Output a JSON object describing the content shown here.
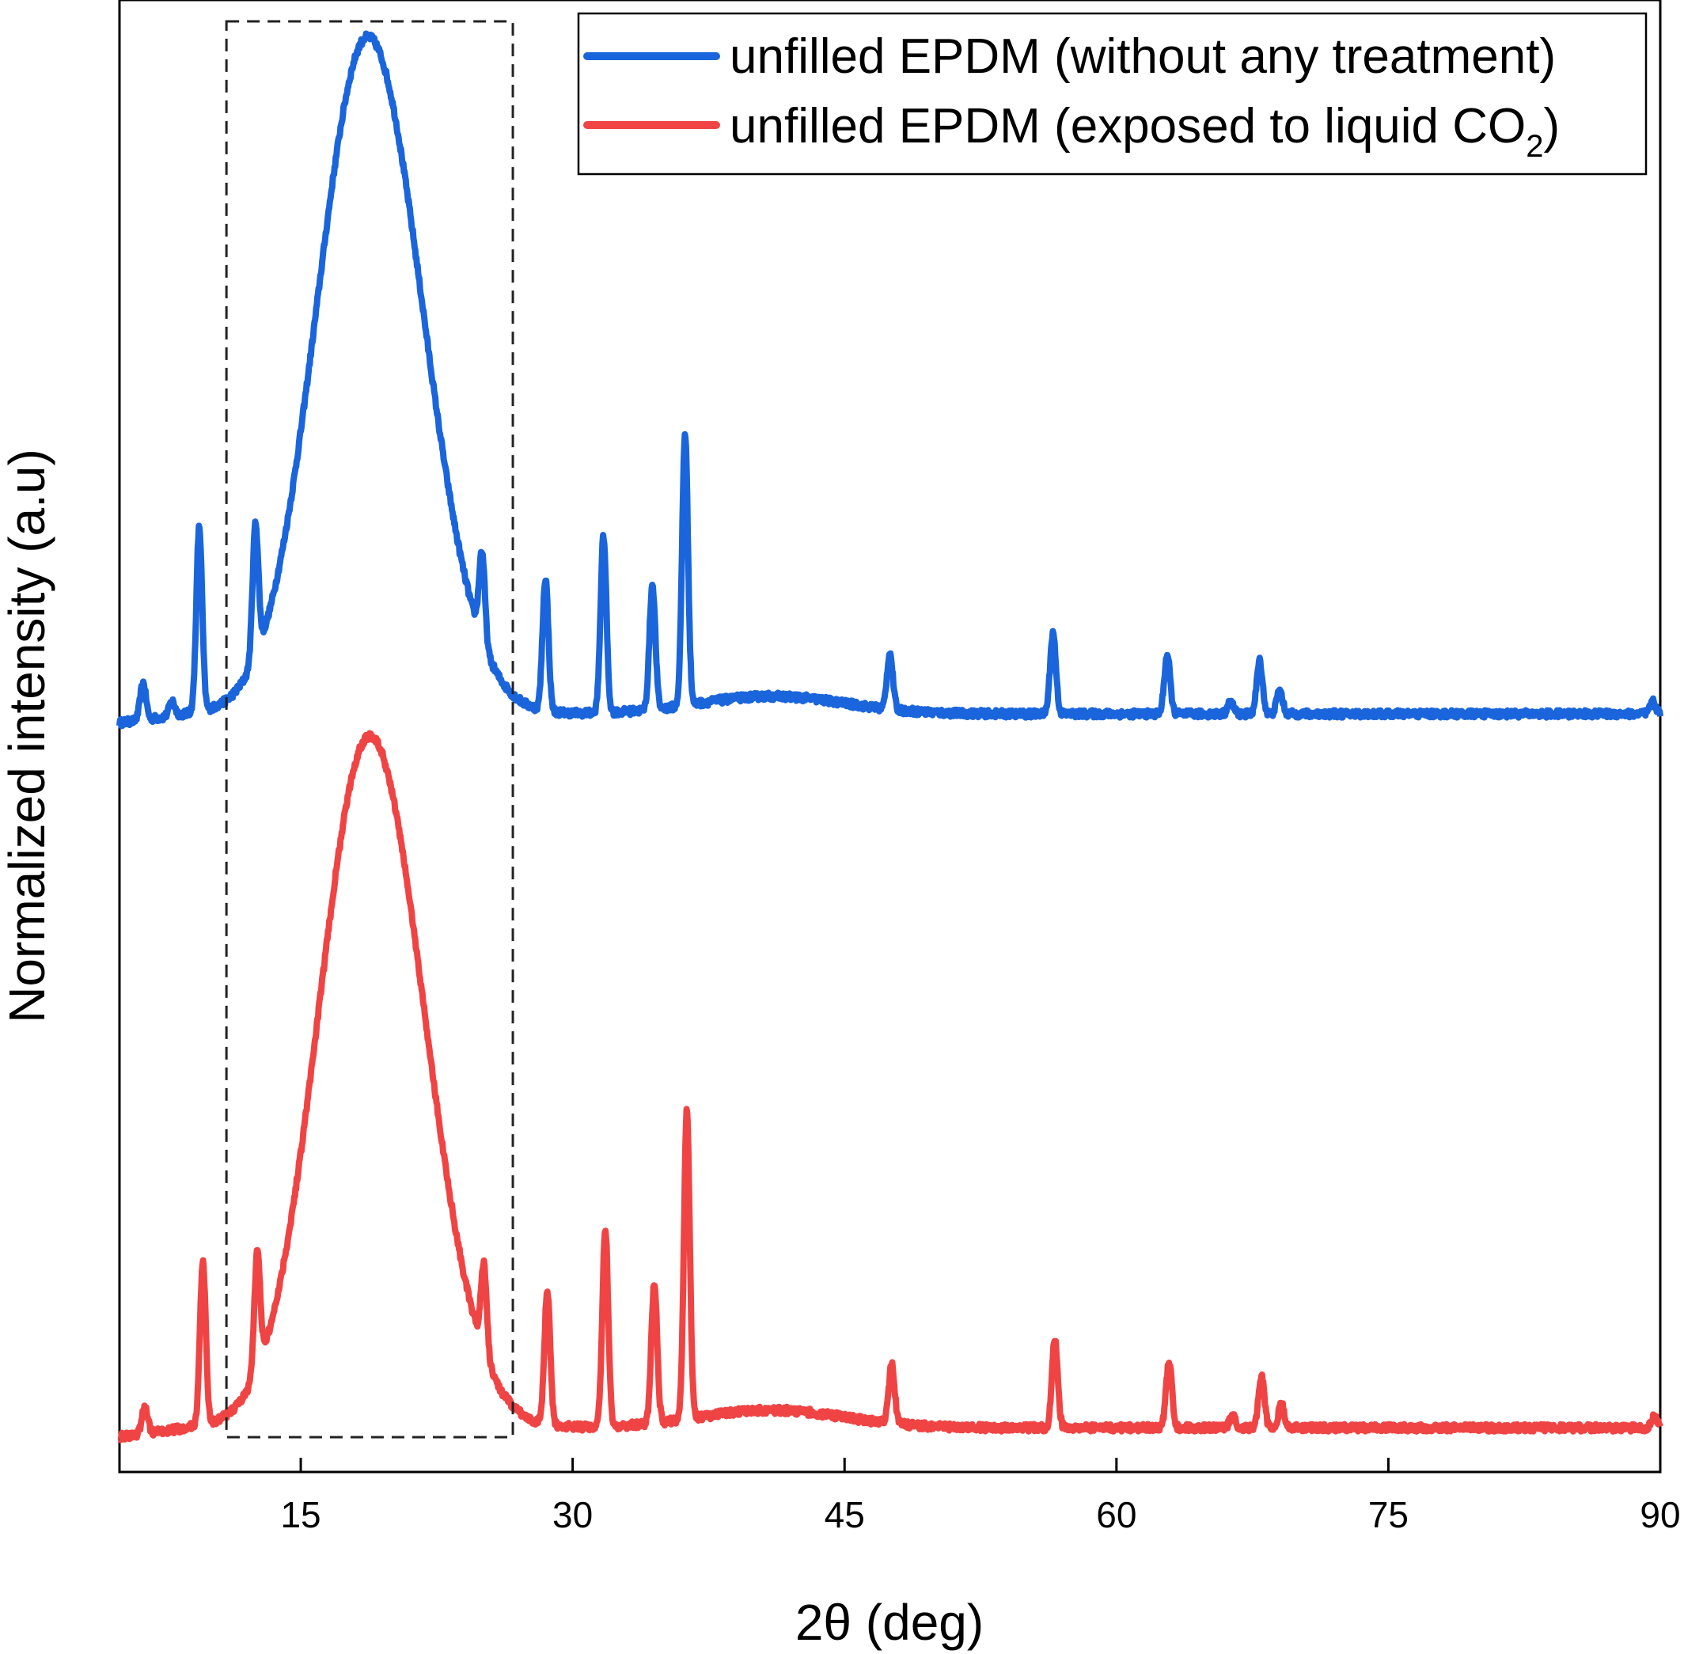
{
  "chart_data": {
    "type": "line",
    "xlabel": "2θ (deg)",
    "ylabel": "Normalized intensity (a.u)",
    "xlim": [
      5,
      90
    ],
    "xticks": [
      15,
      30,
      45,
      60,
      75,
      90
    ],
    "ylim": [
      0,
      1
    ],
    "y_ticks_shown": false,
    "grid": false,
    "legend_position": "top-right",
    "annotation": {
      "type": "dashed-box",
      "x_range": [
        10.9,
        26.7
      ]
    },
    "series": [
      {
        "name": "unfilled EPDM (without any treatment)",
        "legend_main": "unfilled EPDM (without any treatment)",
        "color": "#1a65dc",
        "baseline": 0.515,
        "amorphous_peak": {
          "center": 18.7,
          "height": 0.46,
          "width_left": 2.8,
          "width_right": 3.0
        },
        "broad_bumps": [
          {
            "center": 41,
            "height": 0.012,
            "width": 4
          }
        ],
        "sharp_peaks": [
          {
            "x": 6.3,
            "h": 0.025
          },
          {
            "x": 7.9,
            "h": 0.01
          },
          {
            "x": 9.4,
            "h": 0.125
          },
          {
            "x": 12.5,
            "h": 0.09
          },
          {
            "x": 25.0,
            "h": 0.06
          },
          {
            "x": 28.5,
            "h": 0.09
          },
          {
            "x": 31.7,
            "h": 0.12
          },
          {
            "x": 34.4,
            "h": 0.085
          },
          {
            "x": 36.2,
            "h": 0.185
          },
          {
            "x": 47.5,
            "h": 0.038
          },
          {
            "x": 56.5,
            "h": 0.055
          },
          {
            "x": 62.8,
            "h": 0.04
          },
          {
            "x": 66.3,
            "h": 0.008
          },
          {
            "x": 67.9,
            "h": 0.036
          },
          {
            "x": 69.0,
            "h": 0.016
          },
          {
            "x": 89.6,
            "h": 0.008
          }
        ]
      },
      {
        "name": "unfilled EPDM (exposed to liquid CO2)",
        "legend_main": "unfilled EPDM (exposed to liquid CO",
        "legend_sub": "2",
        "legend_end": ")",
        "color": "#f04444",
        "baseline": 0.03,
        "amorphous_peak": {
          "center": 18.8,
          "height": 0.47,
          "width_left": 2.8,
          "width_right": 3.0
        },
        "broad_bumps": [
          {
            "center": 41,
            "height": 0.012,
            "width": 4
          }
        ],
        "sharp_peaks": [
          {
            "x": 6.4,
            "h": 0.018
          },
          {
            "x": 9.6,
            "h": 0.11
          },
          {
            "x": 12.6,
            "h": 0.08
          },
          {
            "x": 25.1,
            "h": 0.06
          },
          {
            "x": 28.6,
            "h": 0.09
          },
          {
            "x": 31.8,
            "h": 0.135
          },
          {
            "x": 34.5,
            "h": 0.095
          },
          {
            "x": 36.3,
            "h": 0.21
          },
          {
            "x": 47.6,
            "h": 0.04
          },
          {
            "x": 56.6,
            "h": 0.06
          },
          {
            "x": 62.9,
            "h": 0.045
          },
          {
            "x": 66.4,
            "h": 0.008
          },
          {
            "x": 68.0,
            "h": 0.035
          },
          {
            "x": 69.1,
            "h": 0.016
          },
          {
            "x": 89.7,
            "h": 0.008
          }
        ]
      }
    ]
  }
}
